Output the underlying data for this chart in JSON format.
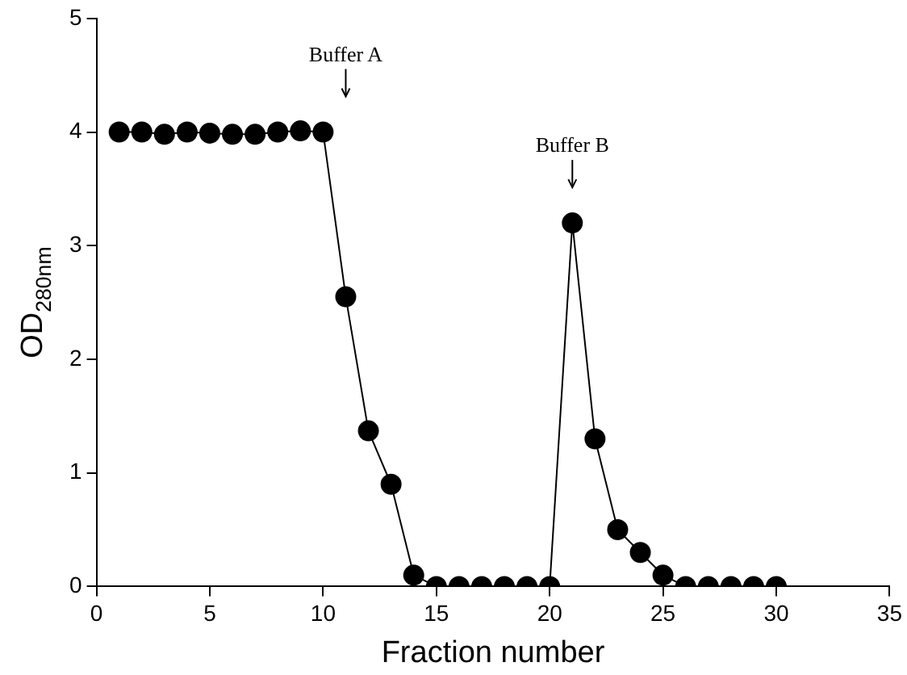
{
  "chart_data": {
    "type": "line",
    "xlabel": "Fraction number",
    "ylabel": "OD$_{280nm}$",
    "x": [
      1,
      2,
      3,
      4,
      5,
      6,
      7,
      8,
      9,
      10,
      11,
      12,
      13,
      14,
      15,
      16,
      17,
      18,
      19,
      20,
      21,
      22,
      23,
      24,
      25,
      26,
      27,
      28,
      29,
      30
    ],
    "series": [
      {
        "color": "#000000",
        "values": [
          4.0,
          4.0,
          3.98,
          4.0,
          3.99,
          3.98,
          3.98,
          4.0,
          4.01,
          4.0,
          2.55,
          1.37,
          0.9,
          0.1,
          0,
          0,
          0,
          0,
          0,
          0,
          3.2,
          1.3,
          0.5,
          0.3,
          0.1,
          0,
          0,
          0,
          0,
          0
        ]
      }
    ],
    "marker": "circle",
    "line_style": "solid",
    "grid": false,
    "legend": false,
    "xlim": [
      0,
      35
    ],
    "xticks": [
      0,
      5,
      10,
      15,
      20,
      25,
      30,
      35
    ],
    "ylim": [
      0,
      5
    ],
    "yticks": [
      0,
      1,
      2,
      3,
      4,
      5
    ],
    "annotations": [
      {
        "text": "Buffer A",
        "x": 11
      },
      {
        "text": "Buffer B",
        "x": 21
      }
    ]
  }
}
